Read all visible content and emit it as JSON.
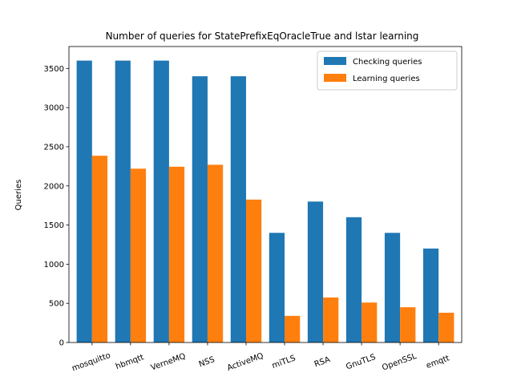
{
  "chart_data": {
    "type": "bar",
    "title": "Number of queries for StatePrefixEqOracleTrue and lstar learning",
    "xlabel": "",
    "ylabel": "Queries",
    "categories": [
      "mosquitto",
      "hbmqtt",
      "VerneMQ",
      "NSS",
      "ActiveMQ",
      "miTLS",
      "RSA",
      "GnuTLS",
      "OpenSSL",
      "emqtt"
    ],
    "series": [
      {
        "name": "Checking queries",
        "color": "#1f77b4",
        "values": [
          3600,
          3600,
          3600,
          3400,
          3400,
          1400,
          1800,
          1600,
          1400,
          1200
        ]
      },
      {
        "name": "Learning queries",
        "color": "#ff7f0e",
        "values": [
          2385,
          2220,
          2245,
          2270,
          1825,
          340,
          575,
          510,
          450,
          380
        ]
      }
    ],
    "ylim": [
      0,
      3780
    ],
    "yticks": [
      0,
      500,
      1000,
      1500,
      2000,
      2500,
      3000,
      3500
    ],
    "grid": false,
    "legend_position": "top-right"
  }
}
